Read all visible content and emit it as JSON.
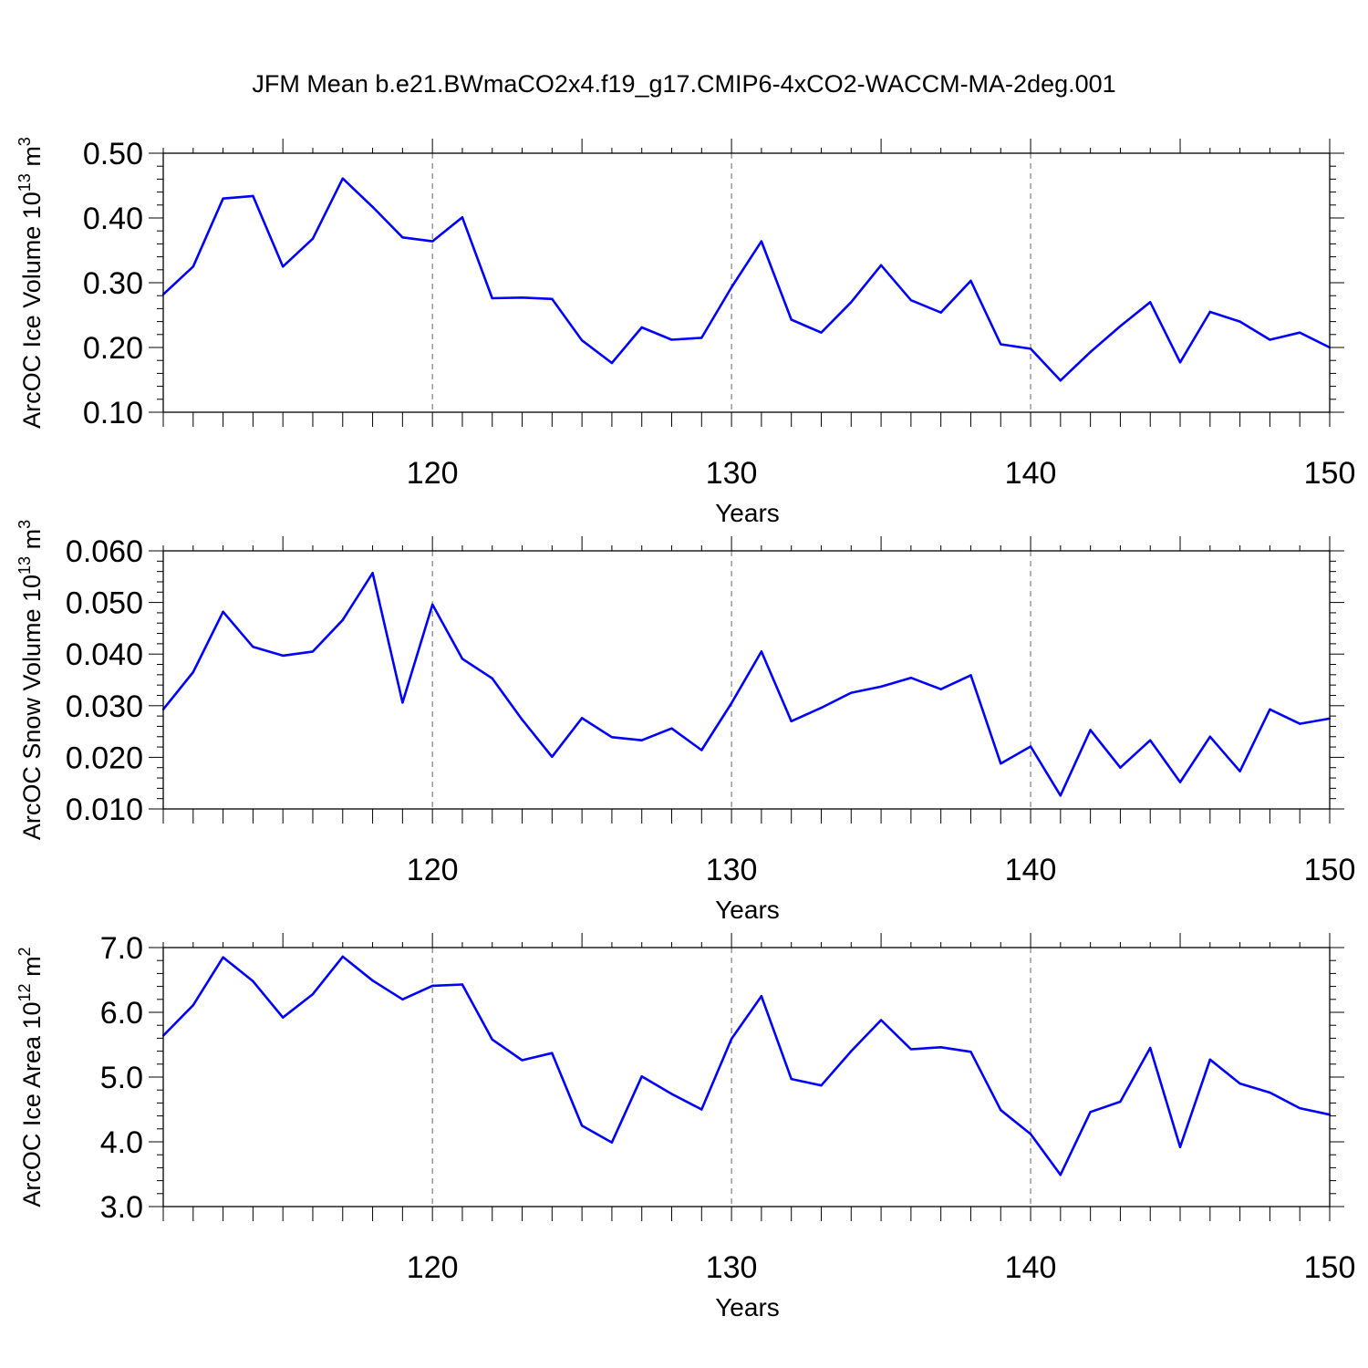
{
  "title": "JFM Mean b.e21.BWmaCO2x4.f19_g17.CMIP6-4xCO2-WACCM-MA-2deg.001",
  "colors": {
    "line": "#0000ff",
    "axis": "#000000",
    "grid": "#666666"
  },
  "chart_data": [
    {
      "type": "line",
      "ylabel": "ArcOC Ice Volume 10",
      "ylabel_sup": "13",
      "ylabel_unit": "m",
      "ylabel_unit_sup": "3",
      "xlabel": "Years",
      "xlim": [
        111,
        150
      ],
      "ylim": [
        0.1,
        0.5
      ],
      "yticks": [
        "0.10",
        "0.20",
        "0.30",
        "0.40",
        "0.50"
      ],
      "xticks": [
        "120",
        "130",
        "140",
        "150"
      ],
      "grid_x": [
        120,
        130,
        140
      ],
      "x": [
        111,
        112,
        113,
        114,
        115,
        116,
        117,
        118,
        119,
        120,
        121,
        122,
        123,
        124,
        125,
        126,
        127,
        128,
        129,
        130,
        131,
        132,
        133,
        134,
        135,
        136,
        137,
        138,
        139,
        140,
        141,
        142,
        143,
        144,
        145,
        146,
        147,
        148,
        149,
        150
      ],
      "y": [
        0.282,
        0.325,
        0.43,
        0.434,
        0.325,
        0.368,
        0.461,
        0.417,
        0.37,
        0.364,
        0.401,
        0.276,
        0.277,
        0.275,
        0.211,
        0.176,
        0.231,
        0.212,
        0.215,
        0.293,
        0.364,
        0.243,
        0.223,
        0.27,
        0.327,
        0.273,
        0.254,
        0.303,
        0.205,
        0.198,
        0.149,
        0.193,
        0.233,
        0.27,
        0.177,
        0.255,
        0.24,
        0.212,
        0.223,
        0.2
      ]
    },
    {
      "type": "line",
      "ylabel": "ArcOC Snow Volume 10",
      "ylabel_sup": "13",
      "ylabel_unit": "m",
      "ylabel_unit_sup": "3",
      "xlabel": "Years",
      "xlim": [
        111,
        150
      ],
      "ylim": [
        0.01,
        0.06
      ],
      "yticks": [
        "0.010",
        "0.020",
        "0.030",
        "0.040",
        "0.050",
        "0.060"
      ],
      "xticks": [
        "120",
        "130",
        "140",
        "150"
      ],
      "grid_x": [
        120,
        130,
        140
      ],
      "x": [
        111,
        112,
        113,
        114,
        115,
        116,
        117,
        118,
        119,
        120,
        121,
        122,
        123,
        124,
        125,
        126,
        127,
        128,
        129,
        130,
        131,
        132,
        133,
        134,
        135,
        136,
        137,
        138,
        139,
        140,
        141,
        142,
        143,
        144,
        145,
        146,
        147,
        148,
        149,
        150
      ],
      "y": [
        0.0293,
        0.0365,
        0.0482,
        0.0414,
        0.0397,
        0.0405,
        0.0466,
        0.0557,
        0.0306,
        0.0496,
        0.0391,
        0.0353,
        0.0273,
        0.0201,
        0.0276,
        0.0239,
        0.0233,
        0.0256,
        0.0214,
        0.0305,
        0.0405,
        0.027,
        0.0296,
        0.0325,
        0.0337,
        0.0354,
        0.0332,
        0.0359,
        0.0188,
        0.0221,
        0.0126,
        0.0253,
        0.018,
        0.0233,
        0.0152,
        0.024,
        0.0173,
        0.0293,
        0.0265,
        0.0275
      ]
    },
    {
      "type": "line",
      "ylabel": "ArcOC Ice Area 10",
      "ylabel_sup": "12",
      "ylabel_unit": "m",
      "ylabel_unit_sup": "2",
      "xlabel": "Years",
      "xlim": [
        111,
        150
      ],
      "ylim": [
        3.0,
        7.0
      ],
      "yticks": [
        "3.0",
        "4.0",
        "5.0",
        "6.0",
        "7.0"
      ],
      "xticks": [
        "120",
        "130",
        "140",
        "150"
      ],
      "grid_x": [
        120,
        130,
        140
      ],
      "x": [
        111,
        112,
        113,
        114,
        115,
        116,
        117,
        118,
        119,
        120,
        121,
        122,
        123,
        124,
        125,
        126,
        127,
        128,
        129,
        130,
        131,
        132,
        133,
        134,
        135,
        136,
        137,
        138,
        139,
        140,
        141,
        142,
        143,
        144,
        145,
        146,
        147,
        148,
        149,
        150
      ],
      "y": [
        5.64,
        6.11,
        6.85,
        6.48,
        5.92,
        6.28,
        6.86,
        6.49,
        6.2,
        6.41,
        6.43,
        5.58,
        5.26,
        5.37,
        4.25,
        3.99,
        5.01,
        4.74,
        4.5,
        5.59,
        6.25,
        4.97,
        4.87,
        5.4,
        5.88,
        5.43,
        5.46,
        5.39,
        4.49,
        4.12,
        3.49,
        4.46,
        4.62,
        5.45,
        3.92,
        5.27,
        4.9,
        4.76,
        4.52,
        4.42
      ]
    }
  ]
}
